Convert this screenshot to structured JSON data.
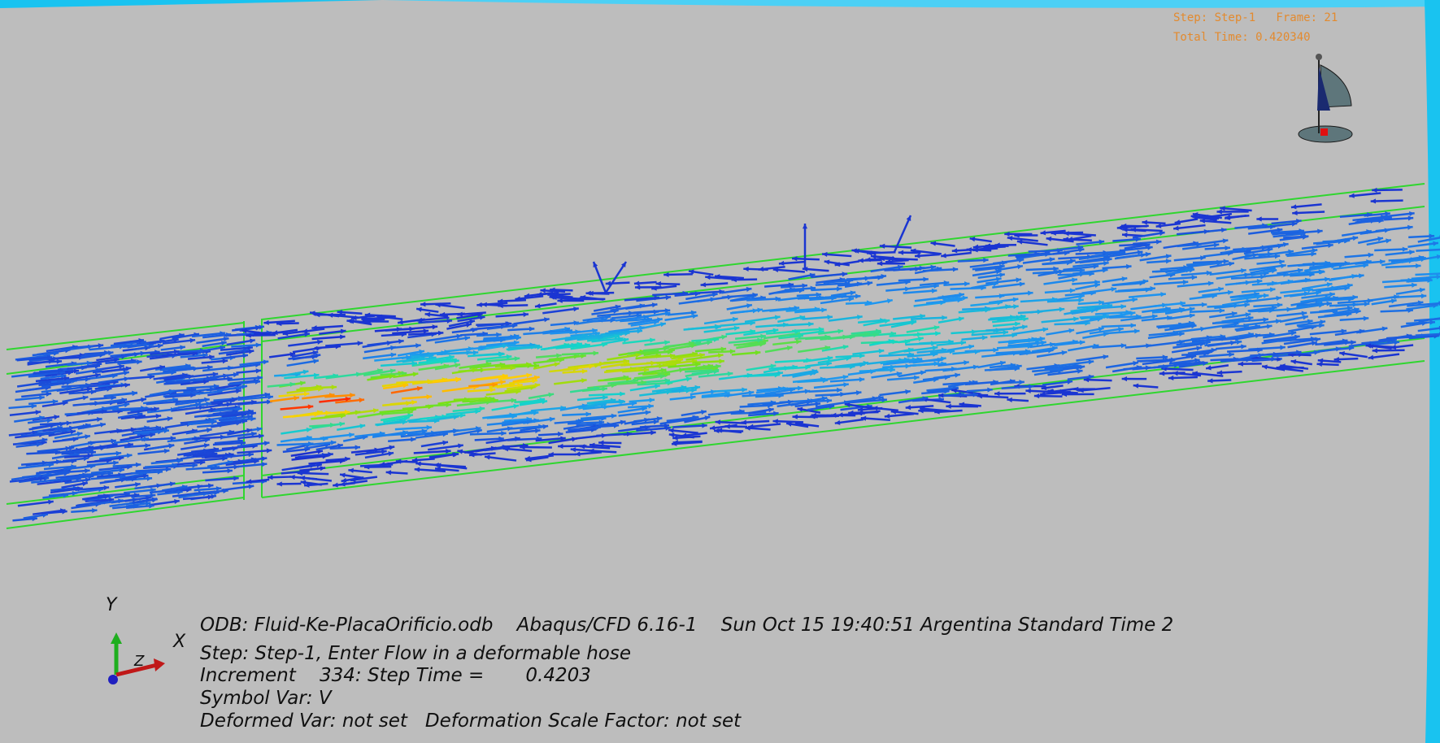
{
  "hud": {
    "step_frame": "Step: Step-1   Frame: 21",
    "total_time": "Total Time: 0.420340"
  },
  "info": {
    "odb_line": "ODB: Fluid-Ke-PlacaOrificio.odb    Abaqus/CFD 6.16-1    Sun Oct 15 19:40:51 Argentina Standard Time 2",
    "step_line": "Step: Step-1, Enter Flow in a deformable hose",
    "increment_line": "Increment    334: Step Time =       0.4203",
    "symbol_line": "Symbol Var: V",
    "deformed_line": "Deformed Var: not set   Deformation Scale Factor: not set"
  },
  "triad": {
    "x_label": "X",
    "y_label": "Y",
    "z_label": "Z"
  },
  "colors": {
    "background": "#bdbdbd",
    "hud_text": "#e38a2e",
    "mesh_edges": "#2fd62f",
    "arrow_low": "#1a2fd0",
    "arrow_high": "#ff2a00",
    "frame_light_blue": "#19c3f0"
  },
  "icons": [
    "view-compass-icon",
    "coordinate-triad-icon"
  ]
}
